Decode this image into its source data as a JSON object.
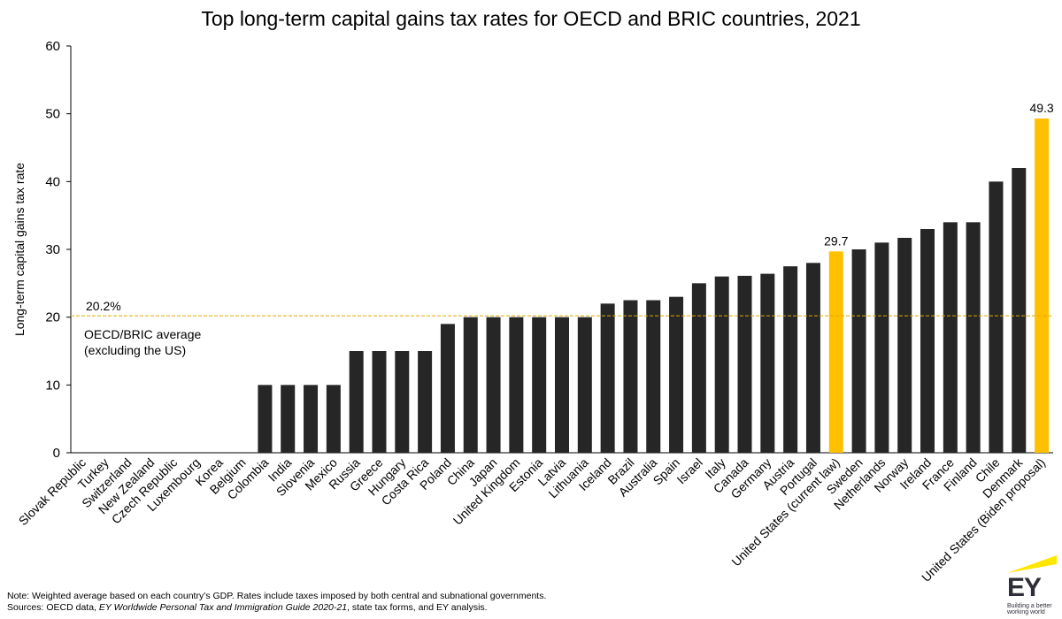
{
  "title": "Top long-term capital gains tax rates for OECD and BRIC countries, 2021",
  "chart_data": {
    "type": "bar",
    "title": "Top long-term capital gains tax rates for OECD and BRIC countries, 2021",
    "ylabel": "Long-term capital gains tax rate",
    "xlabel": "",
    "ylim": [
      0,
      60
    ],
    "yticks": [
      0,
      10,
      20,
      30,
      40,
      50,
      60
    ],
    "grid": false,
    "categories": [
      "Slovak Republic",
      "Turkey",
      "Switzerland",
      "New Zealand",
      "Czech Republic",
      "Luxembourg",
      "Korea",
      "Belgium",
      "Colombia",
      "India",
      "Slovenia",
      "Mexico",
      "Russia",
      "Greece",
      "Hungary",
      "Costa Rica",
      "Poland",
      "China",
      "Japan",
      "United Kingdom",
      "Estonia",
      "Latvia",
      "Lithuania",
      "Iceland",
      "Brazil",
      "Australia",
      "Spain",
      "Israel",
      "Italy",
      "Canada",
      "Germany",
      "Austria",
      "Portugal",
      "United States (current law)",
      "Sweden",
      "Netherlands",
      "Norway",
      "Ireland",
      "France",
      "Finland",
      "Chile",
      "Denmark",
      "United States (Biden proposal)"
    ],
    "values": [
      0,
      0,
      0,
      0,
      0,
      0,
      0,
      0,
      10,
      10,
      10,
      10,
      15,
      15,
      15,
      15,
      19,
      20,
      20,
      20,
      20,
      20,
      20,
      22,
      22.5,
      22.5,
      23,
      25,
      26,
      26.1,
      26.4,
      27.5,
      28,
      29.7,
      30,
      31,
      31.7,
      33,
      34,
      34,
      40,
      42,
      49.3
    ],
    "highlighted_categories": [
      "United States (current law)",
      "United States (Biden proposal)"
    ],
    "data_labels": [
      {
        "category": "United States (current law)",
        "text": "29.7"
      },
      {
        "category": "United States (Biden proposal)",
        "text": "49.3"
      }
    ],
    "reference_line": {
      "value": 20.2,
      "value_label": "20.2%",
      "label_line1": "OECD/BRIC average",
      "label_line2": "(excluding the US)"
    },
    "colors": {
      "bar": "#262626",
      "highlight": "#ffc000",
      "reference_line": "#e0a800",
      "axis": "#000000"
    }
  },
  "footnotes": {
    "note": "Note: Weighted average based on each country’s GDP. Rates include taxes imposed by both central and subnational governments.",
    "sources_prefix": "Sources: OECD data, ",
    "sources_italic": "EY Worldwide Personal Tax and Immigration Guide 2020-21",
    "sources_suffix": ", state tax forms, and EY analysis."
  },
  "logo": {
    "letters": "EY",
    "tagline_line1": "Building a better",
    "tagline_line2": "working world",
    "color": "#ffe600"
  }
}
